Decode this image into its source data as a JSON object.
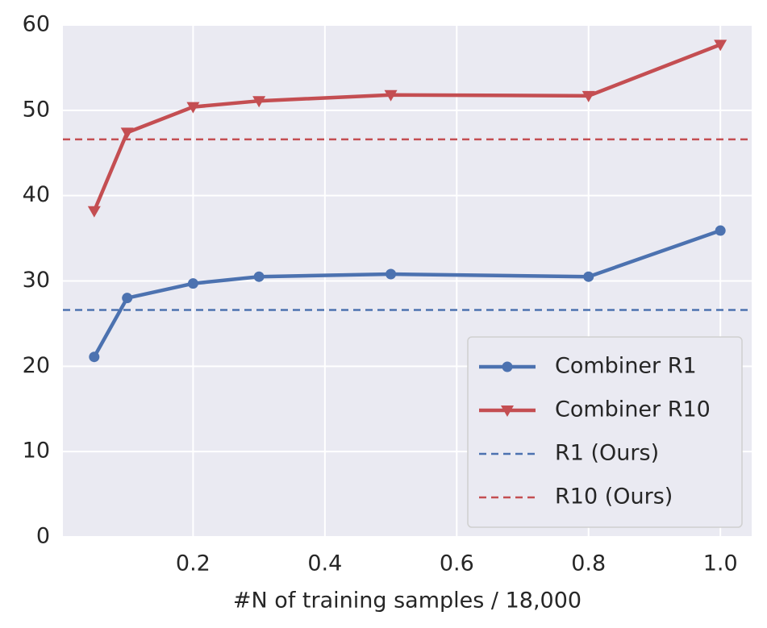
{
  "chart_data": {
    "type": "line",
    "x_label": "#N of training samples / 18,000",
    "x": [
      0.05,
      0.1,
      0.2,
      0.3,
      0.5,
      0.8,
      1.0
    ],
    "series": [
      {
        "name": "Combiner R1",
        "color": "#4c72b0",
        "marker": "circle",
        "values": [
          21.1,
          28.0,
          29.7,
          30.5,
          30.8,
          30.5,
          35.9
        ]
      },
      {
        "name": "Combiner R10",
        "color": "#c44e52",
        "marker": "triangle-down",
        "values": [
          38.2,
          47.4,
          50.4,
          51.1,
          51.8,
          51.7,
          57.7
        ]
      }
    ],
    "hlines": [
      {
        "name": "R1 (Ours)",
        "color": "#4c72b0",
        "value": 26.6
      },
      {
        "name": "R10 (Ours)",
        "color": "#c44e52",
        "value": 46.6
      }
    ],
    "xlim": [
      0.0025,
      1.0475
    ],
    "ylim": [
      0,
      60
    ],
    "xticks": [
      0.2,
      0.4,
      0.6,
      0.8,
      {
        "value": 1,
        "label": "1.0"
      }
    ],
    "yticks": [
      0,
      10,
      20,
      30,
      40,
      50,
      60
    ],
    "grid": true,
    "legend": "lower right"
  }
}
